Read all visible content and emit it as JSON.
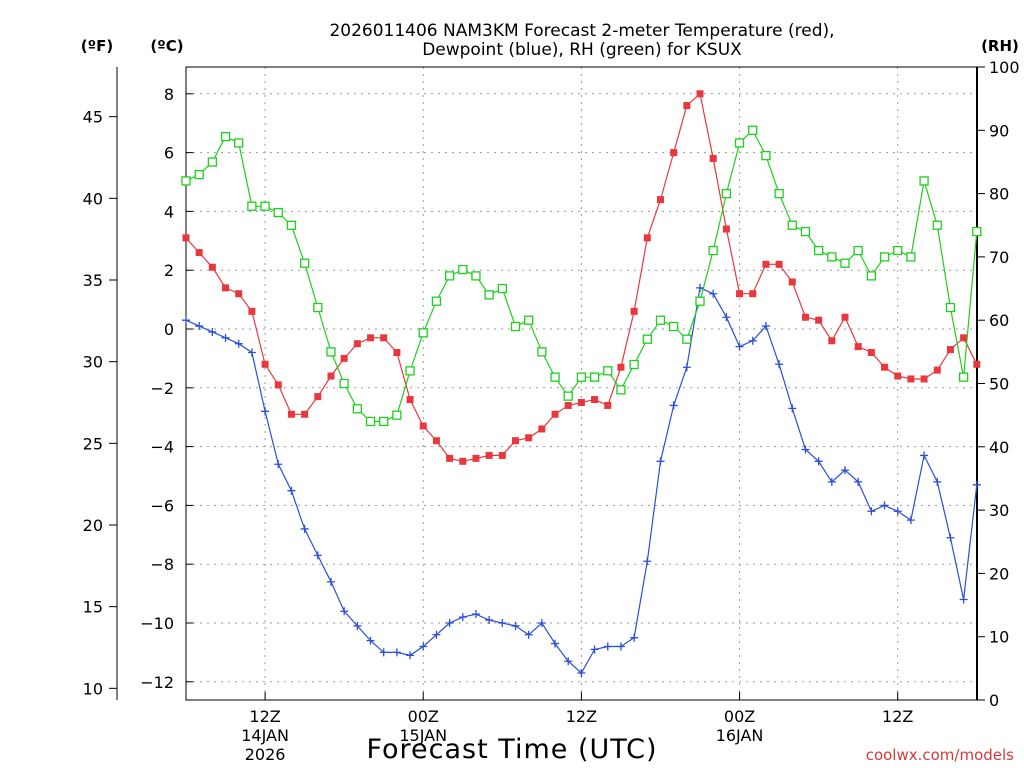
{
  "chart_data": {
    "type": "line",
    "title_line1": "2026011406 NAM3KM Forecast 2-meter Temperature (red),",
    "title_line2": "Dewpoint (blue), RH (green) for KSUX",
    "xlabel": "Forecast Time (UTC)",
    "watermark": "coolwx.com/models",
    "unit_f": "(ºF)",
    "unit_c": "(ºC)",
    "unit_rh": "(RH)",
    "forecast_hours": [
      0,
      1,
      2,
      3,
      4,
      5,
      6,
      7,
      8,
      9,
      10,
      11,
      12,
      13,
      14,
      15,
      16,
      17,
      18,
      19,
      20,
      21,
      22,
      23,
      24,
      25,
      26,
      27,
      28,
      29,
      30,
      31,
      32,
      33,
      34,
      35,
      36,
      37,
      38,
      39,
      40,
      41,
      42,
      43,
      44,
      45,
      46,
      47,
      48,
      49,
      50,
      51,
      52,
      53,
      54,
      55,
      56,
      57,
      58,
      59,
      60
    ],
    "xlim_hours": [
      0,
      60
    ],
    "ylim_c": [
      -13,
      9
    ],
    "ylim_rh": [
      0,
      100
    ],
    "x_ticks": [
      {
        "hour": 6,
        "label": "12Z",
        "sub1": "14JAN",
        "sub2": "2026"
      },
      {
        "hour": 18,
        "label": "00Z",
        "sub1": "15JAN",
        "sub2": ""
      },
      {
        "hour": 30,
        "label": "12Z",
        "sub1": "",
        "sub2": ""
      },
      {
        "hour": 42,
        "label": "00Z",
        "sub1": "16JAN",
        "sub2": ""
      },
      {
        "hour": 54,
        "label": "12Z",
        "sub1": "",
        "sub2": ""
      }
    ],
    "y_ticks_c": [
      {
        "value": 8,
        "label": "8"
      },
      {
        "value": 6,
        "label": "6"
      },
      {
        "value": 4,
        "label": "4"
      },
      {
        "value": 2,
        "label": "2"
      },
      {
        "value": 0,
        "label": "0"
      },
      {
        "value": -2,
        "label": "−2"
      },
      {
        "value": -4,
        "label": "−4"
      },
      {
        "value": -6,
        "label": "−6"
      },
      {
        "value": -8,
        "label": "−8"
      },
      {
        "value": -10,
        "label": "−10"
      },
      {
        "value": -12,
        "label": "−12"
      }
    ],
    "y_ticks_f": [
      {
        "value": 45,
        "label": "45"
      },
      {
        "value": 40,
        "label": "40"
      },
      {
        "value": 35,
        "label": "35"
      },
      {
        "value": 30,
        "label": "30"
      },
      {
        "value": 25,
        "label": "25"
      },
      {
        "value": 20,
        "label": "20"
      },
      {
        "value": 15,
        "label": "15"
      },
      {
        "value": 10,
        "label": "10"
      }
    ],
    "y_ticks_rh": [
      {
        "value": 100,
        "label": "100"
      },
      {
        "value": 90,
        "label": "90"
      },
      {
        "value": 80,
        "label": "80"
      },
      {
        "value": 70,
        "label": "70"
      },
      {
        "value": 60,
        "label": "60"
      },
      {
        "value": 50,
        "label": "50"
      },
      {
        "value": 40,
        "label": "40"
      },
      {
        "value": 30,
        "label": "30"
      },
      {
        "value": 20,
        "label": "20"
      },
      {
        "value": 10,
        "label": "10"
      },
      {
        "value": 0,
        "label": "0"
      }
    ],
    "series": [
      {
        "name": "2-meter Temperature",
        "unit": "C",
        "color": "#e8383d",
        "marker": "filled-square",
        "values": [
          3.1,
          2.6,
          2.1,
          1.4,
          1.2,
          0.6,
          -1.2,
          -1.9,
          -2.9,
          -2.9,
          -2.3,
          -1.6,
          -1.0,
          -0.5,
          -0.3,
          -0.3,
          -0.8,
          -2.4,
          -3.3,
          -3.8,
          -4.4,
          -4.5,
          -4.4,
          -4.3,
          -4.3,
          -3.8,
          -3.7,
          -3.4,
          -2.9,
          -2.6,
          -2.5,
          -2.4,
          -2.6,
          -1.3,
          0.6,
          3.1,
          4.4,
          6.0,
          7.6,
          8.0,
          5.8,
          3.4,
          1.2,
          1.2,
          2.2,
          2.2,
          1.6,
          0.4,
          0.3,
          -0.4,
          0.4,
          -0.6,
          -0.8,
          -1.3,
          -1.6,
          -1.7,
          -1.7,
          -1.4,
          -0.7,
          -0.3,
          -1.2
        ]
      },
      {
        "name": "Dewpoint",
        "unit": "C",
        "color": "#2b4fd8",
        "marker": "plus",
        "values": [
          0.3,
          0.1,
          -0.1,
          -0.3,
          -0.5,
          -0.8,
          -2.8,
          -4.6,
          -5.5,
          -6.8,
          -7.7,
          -8.6,
          -9.6,
          -10.1,
          -10.6,
          -11.0,
          -11.0,
          -11.1,
          -10.8,
          -10.4,
          -10.0,
          -9.8,
          -9.7,
          -9.9,
          -10.0,
          -10.1,
          -10.4,
          -10.0,
          -10.7,
          -11.3,
          -11.7,
          -10.9,
          -10.8,
          -10.8,
          -10.5,
          -7.9,
          -4.5,
          -2.6,
          -1.3,
          1.4,
          1.2,
          0.4,
          -0.6,
          -0.4,
          0.1,
          -1.2,
          -2.7,
          -4.1,
          -4.5,
          -5.2,
          -4.8,
          -5.2,
          -6.2,
          -6.0,
          -6.2,
          -6.5,
          -4.3,
          -5.2,
          -7.1,
          -9.2,
          -5.3
        ]
      },
      {
        "name": "RH",
        "unit": "%",
        "color": "#1ecf1e",
        "marker": "open-square",
        "values": [
          82,
          83,
          85,
          89,
          88,
          78,
          78,
          77,
          75,
          69,
          62,
          55,
          50,
          46,
          44,
          44,
          45,
          52,
          58,
          63,
          67,
          68,
          67,
          64,
          65,
          59,
          60,
          55,
          51,
          48,
          51,
          51,
          52,
          49,
          53,
          57,
          60,
          59,
          57,
          63,
          71,
          80,
          88,
          90,
          86,
          80,
          75,
          74,
          71,
          70,
          69,
          71,
          67,
          70,
          71,
          70,
          82,
          75,
          62,
          51,
          74
        ]
      }
    ]
  }
}
